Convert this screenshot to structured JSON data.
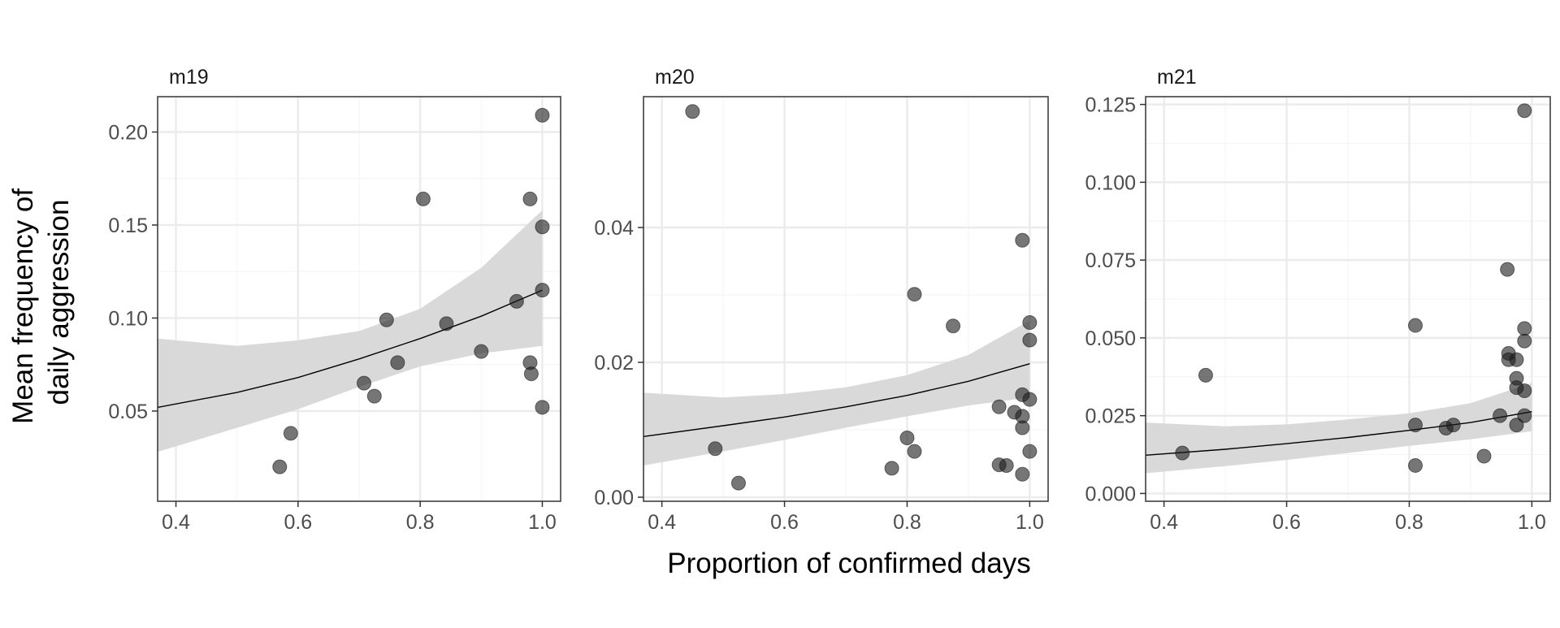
{
  "chart_data": {
    "type": "scatter",
    "xlabel": "Proportion of confirmed days",
    "ylabel": [
      "Mean frequency of",
      "daily aggression"
    ],
    "grid": true,
    "colors": {
      "point": "#1a1a1a",
      "ribbon": "#d9d9d9",
      "line": "#000000",
      "grid_major": "#ebebeb",
      "grid_minor": "#f5f5f5",
      "panel_border": "#333333"
    },
    "panels": [
      {
        "title": "m19",
        "xlim": [
          0.37,
          1.03
        ],
        "ylim": [
          0.0015,
          0.219
        ],
        "xticks": [
          0.4,
          0.6,
          0.8,
          1.0
        ],
        "xtick_labels": [
          "0.4",
          "0.6",
          "0.8",
          "1.0"
        ],
        "yticks": [
          0.05,
          0.1,
          0.15,
          0.2
        ],
        "ytick_labels": [
          "0.05",
          "0.10",
          "0.15",
          "0.20"
        ],
        "points": [
          {
            "x": 0.57,
            "y": 0.02
          },
          {
            "x": 0.588,
            "y": 0.038
          },
          {
            "x": 0.708,
            "y": 0.065
          },
          {
            "x": 0.725,
            "y": 0.058
          },
          {
            "x": 0.745,
            "y": 0.099
          },
          {
            "x": 0.763,
            "y": 0.076
          },
          {
            "x": 0.805,
            "y": 0.164
          },
          {
            "x": 0.843,
            "y": 0.097
          },
          {
            "x": 0.9,
            "y": 0.082
          },
          {
            "x": 0.958,
            "y": 0.109
          },
          {
            "x": 0.98,
            "y": 0.164
          },
          {
            "x": 0.98,
            "y": 0.076
          },
          {
            "x": 0.982,
            "y": 0.07
          },
          {
            "x": 1.0,
            "y": 0.209
          },
          {
            "x": 1.0,
            "y": 0.149
          },
          {
            "x": 1.0,
            "y": 0.115
          },
          {
            "x": 1.0,
            "y": 0.052
          }
        ],
        "fit": {
          "x": [
            0.37,
            0.5,
            0.6,
            0.7,
            0.8,
            0.9,
            1.0
          ],
          "y": [
            0.052,
            0.06,
            0.068,
            0.078,
            0.089,
            0.101,
            0.115
          ],
          "lower": [
            0.028,
            0.041,
            0.051,
            0.063,
            0.074,
            0.081,
            0.085
          ],
          "upper": [
            0.089,
            0.085,
            0.088,
            0.093,
            0.105,
            0.127,
            0.158
          ]
        }
      },
      {
        "title": "m20",
        "xlim": [
          0.37,
          1.03
        ],
        "ylim": [
          -0.0006,
          0.0594
        ],
        "xticks": [
          0.4,
          0.6,
          0.8,
          1.0
        ],
        "xtick_labels": [
          "0.4",
          "0.6",
          "0.8",
          "1.0"
        ],
        "yticks": [
          0.0,
          0.02,
          0.04
        ],
        "ytick_labels": [
          "0.00",
          "0.02",
          "0.04"
        ],
        "points": [
          {
            "x": 0.45,
            "y": 0.0572
          },
          {
            "x": 0.487,
            "y": 0.0072
          },
          {
            "x": 0.525,
            "y": 0.0021
          },
          {
            "x": 0.775,
            "y": 0.0043
          },
          {
            "x": 0.8,
            "y": 0.0088
          },
          {
            "x": 0.812,
            "y": 0.0068
          },
          {
            "x": 0.812,
            "y": 0.0301
          },
          {
            "x": 0.875,
            "y": 0.0254
          },
          {
            "x": 0.95,
            "y": 0.0134
          },
          {
            "x": 0.95,
            "y": 0.0048
          },
          {
            "x": 0.962,
            "y": 0.0047
          },
          {
            "x": 0.975,
            "y": 0.0126
          },
          {
            "x": 0.988,
            "y": 0.0381
          },
          {
            "x": 0.988,
            "y": 0.0152
          },
          {
            "x": 0.988,
            "y": 0.012
          },
          {
            "x": 0.988,
            "y": 0.0103
          },
          {
            "x": 0.988,
            "y": 0.0034
          },
          {
            "x": 1.0,
            "y": 0.0259
          },
          {
            "x": 1.0,
            "y": 0.0233
          },
          {
            "x": 1.0,
            "y": 0.0145
          },
          {
            "x": 1.0,
            "y": 0.0068
          }
        ],
        "fit": {
          "x": [
            0.37,
            0.5,
            0.6,
            0.7,
            0.8,
            0.9,
            1.0
          ],
          "y": [
            0.009,
            0.0106,
            0.0119,
            0.0134,
            0.0151,
            0.0172,
            0.0198
          ],
          "lower": [
            0.0047,
            0.0068,
            0.0085,
            0.0103,
            0.012,
            0.0136,
            0.0148
          ],
          "upper": [
            0.0155,
            0.0148,
            0.0153,
            0.0163,
            0.0181,
            0.0211,
            0.0262
          ]
        }
      },
      {
        "title": "m21",
        "xlim": [
          0.37,
          1.03
        ],
        "ylim": [
          -0.0025,
          0.1275
        ],
        "xticks": [
          0.4,
          0.6,
          0.8,
          1.0
        ],
        "xtick_labels": [
          "0.4",
          "0.6",
          "0.8",
          "1.0"
        ],
        "yticks": [
          0.0,
          0.025,
          0.05,
          0.075,
          0.1,
          0.125
        ],
        "ytick_labels": [
          "0.000",
          "0.025",
          "0.050",
          "0.075",
          "0.100",
          "0.125"
        ],
        "points": [
          {
            "x": 0.43,
            "y": 0.013
          },
          {
            "x": 0.468,
            "y": 0.038
          },
          {
            "x": 0.81,
            "y": 0.054
          },
          {
            "x": 0.81,
            "y": 0.022
          },
          {
            "x": 0.81,
            "y": 0.009
          },
          {
            "x": 0.86,
            "y": 0.021
          },
          {
            "x": 0.872,
            "y": 0.022
          },
          {
            "x": 0.922,
            "y": 0.012
          },
          {
            "x": 0.948,
            "y": 0.025
          },
          {
            "x": 0.96,
            "y": 0.072
          },
          {
            "x": 0.962,
            "y": 0.045
          },
          {
            "x": 0.962,
            "y": 0.043
          },
          {
            "x": 0.975,
            "y": 0.043
          },
          {
            "x": 0.975,
            "y": 0.037
          },
          {
            "x": 0.975,
            "y": 0.034
          },
          {
            "x": 0.975,
            "y": 0.022
          },
          {
            "x": 0.988,
            "y": 0.123
          },
          {
            "x": 0.988,
            "y": 0.053
          },
          {
            "x": 0.988,
            "y": 0.049
          },
          {
            "x": 0.988,
            "y": 0.033
          },
          {
            "x": 0.988,
            "y": 0.025
          }
        ],
        "fit": {
          "x": [
            0.37,
            0.5,
            0.6,
            0.7,
            0.8,
            0.9,
            1.0
          ],
          "y": [
            0.0123,
            0.0142,
            0.016,
            0.018,
            0.0203,
            0.0228,
            0.0263
          ],
          "lower": [
            0.0065,
            0.0088,
            0.0108,
            0.013,
            0.0153,
            0.0174,
            0.02
          ],
          "upper": [
            0.0228,
            0.0216,
            0.0222,
            0.0238,
            0.0258,
            0.029,
            0.0355
          ]
        }
      }
    ]
  }
}
